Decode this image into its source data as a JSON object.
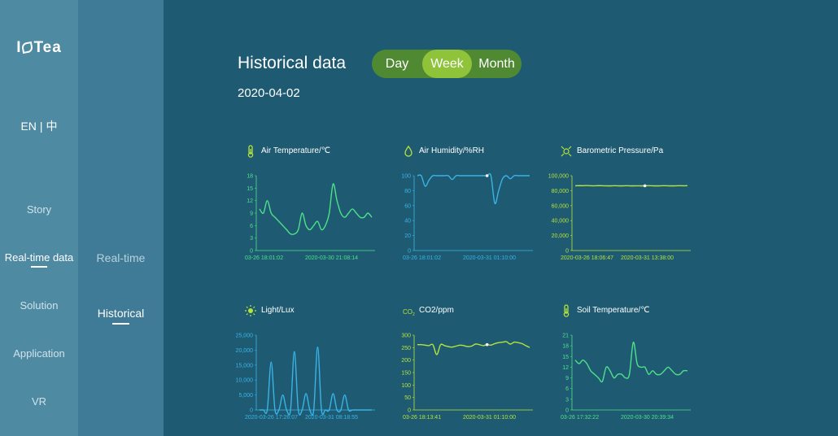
{
  "brand": {
    "prefix": "I",
    "suffix": "Tea"
  },
  "lang": {
    "en": "EN",
    "sep": "|",
    "zh": "中"
  },
  "nav": [
    {
      "label": "Story",
      "active": false
    },
    {
      "label": "Real-time data",
      "active": true
    },
    {
      "label": "Solution",
      "active": false
    },
    {
      "label": "Application",
      "active": false
    },
    {
      "label": "VR",
      "active": false
    }
  ],
  "subnav": [
    {
      "label": "Real-time",
      "active": false
    },
    {
      "label": "Historical",
      "active": true
    }
  ],
  "page": {
    "title": "Historical data",
    "date": "2020-04-02"
  },
  "range": {
    "options": [
      "Day",
      "Week",
      "Month"
    ],
    "selected": "Week"
  },
  "colors": {
    "green": "#4fe08a",
    "blue": "#3ab3e6",
    "lime": "#b7e43a",
    "accent": "#8fc43a"
  },
  "charts": [
    {
      "id": "air-temperature",
      "title": "Air Temperature/℃",
      "icon": "thermometer-icon",
      "type": "line",
      "color": "#4fe08a",
      "ylim": [
        0,
        18
      ],
      "yticks": [
        "18",
        "15",
        "12",
        "9",
        "6",
        "3",
        "0"
      ],
      "xticks": [
        "03-26 18:01:02",
        "2020-03-30 21:08:14"
      ],
      "marker": null,
      "values": [
        10,
        9,
        12,
        9,
        8,
        7,
        6,
        5,
        4,
        4,
        5,
        9,
        6,
        5,
        6,
        7,
        5,
        6,
        9,
        16,
        12,
        9,
        8,
        9,
        10,
        9,
        8,
        8,
        9,
        8
      ]
    },
    {
      "id": "air-humidity",
      "title": "Air Humidity/%RH",
      "icon": "water-drop-icon",
      "type": "line",
      "color": "#3ab3e6",
      "ylim": [
        0,
        100
      ],
      "yticks": [
        "100",
        "80",
        "60",
        "40",
        "20",
        "0"
      ],
      "xticks": [
        "03-26 18:01:02",
        "2020-03-31 01:10:00"
      ],
      "marker": 18,
      "values": [
        100,
        100,
        86,
        94,
        100,
        100,
        100,
        100,
        100,
        95,
        100,
        100,
        100,
        100,
        100,
        100,
        100,
        100,
        100,
        100,
        63,
        80,
        96,
        100,
        96,
        100,
        100,
        100,
        100,
        100
      ]
    },
    {
      "id": "barometric-pressure",
      "title": "Barometric Pressure/Pa",
      "icon": "pressure-icon",
      "type": "line",
      "color": "#b7e43a",
      "ylim": [
        0,
        100000
      ],
      "yticks": [
        "100,000",
        "80,000",
        "60,000",
        "40,000",
        "20,000",
        "0"
      ],
      "xticks": [
        "2020-03-26 18:06:47",
        "2020-03-31 13:38:00"
      ],
      "marker": 18,
      "values": [
        86500,
        86700,
        86600,
        86800,
        86600,
        86500,
        86700,
        86600,
        86500,
        86400,
        86600,
        86500,
        86400,
        86600,
        86500,
        86400,
        86500,
        86400,
        86500,
        86600,
        86500,
        86400,
        86500,
        86600,
        86500,
        86400,
        86500,
        86600,
        86500,
        86600
      ]
    },
    {
      "id": "light",
      "title": "Light/Lux",
      "icon": "sun-icon",
      "type": "line",
      "color": "#3ab3e6",
      "ylim": [
        0,
        25000
      ],
      "yticks": [
        "25,000",
        "20,000",
        "15,000",
        "10,000",
        "5,000",
        "0"
      ],
      "xticks": [
        "2020-03-26 17:26:07",
        "2020-03-31 08:18:55"
      ],
      "marker": null,
      "values": [
        0,
        0,
        0,
        16000,
        0,
        0,
        5000,
        0,
        0,
        19500,
        0,
        0,
        5500,
        0,
        0,
        21000,
        0,
        0,
        0,
        5500,
        0,
        0,
        5000,
        0,
        0,
        0,
        0,
        0,
        0,
        0
      ]
    },
    {
      "id": "co2",
      "title": "CO2/ppm",
      "icon": "co2-icon",
      "type": "line",
      "color": "#b7e43a",
      "ylim": [
        0,
        300
      ],
      "yticks": [
        "300",
        "250",
        "200",
        "150",
        "100",
        "50",
        "0"
      ],
      "xticks": [
        "03-26 18:13:41",
        "2020-03-31 01:10:00"
      ],
      "marker": 18,
      "values": [
        262,
        262,
        260,
        258,
        262,
        222,
        262,
        258,
        254,
        252,
        256,
        260,
        258,
        254,
        256,
        264,
        262,
        258,
        262,
        260,
        266,
        270,
        272,
        274,
        264,
        272,
        270,
        266,
        258,
        250
      ]
    },
    {
      "id": "soil-temperature",
      "title": "Soil Temperature/℃",
      "icon": "thermometer-icon",
      "type": "line",
      "color": "#4fe08a",
      "ylim": [
        0,
        21
      ],
      "yticks": [
        "21",
        "18",
        "15",
        "12",
        "9",
        "6",
        "3",
        "0"
      ],
      "xticks": [
        "03-26 17:32:22",
        "2020-03-30 20:39:34"
      ],
      "marker": null,
      "values": [
        14,
        13,
        14,
        13,
        11,
        10,
        9,
        8,
        12,
        11,
        9,
        10,
        10,
        9,
        10,
        19,
        13,
        12,
        12,
        10,
        11,
        10,
        10,
        11,
        12,
        11,
        10,
        10,
        11,
        11
      ]
    }
  ]
}
